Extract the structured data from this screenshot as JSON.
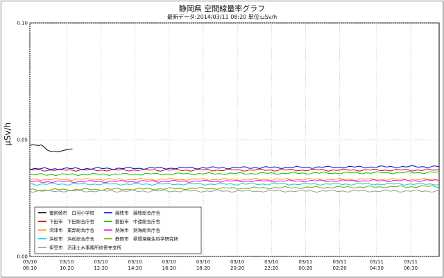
{
  "title": "静岡県 空間線量率グラフ",
  "subtitle": "最新データ:2014/03/11 08:20 単位:μSv/h",
  "chart_data": {
    "type": "line",
    "title": "静岡県 空間線量率グラフ",
    "subtitle": "最新データ:2014/03/11 08:20 単位:μSv/h",
    "ylabel": "μSv/h",
    "xlabel": "",
    "ylim": [
      0,
      0.1
    ],
    "yticks": [
      "0.00",
      "0.05",
      "0.10"
    ],
    "xlim": [
      0,
      1440
    ],
    "x_unit": "minutes after 03/10 08:10",
    "xticks": [
      {
        "x": 0,
        "date": "03/10",
        "time": "08:10"
      },
      {
        "x": 130,
        "date": "03/10",
        "time": "10:20"
      },
      {
        "x": 250,
        "date": "03/10",
        "time": "12:20"
      },
      {
        "x": 370,
        "date": "03/10",
        "time": "14:20"
      },
      {
        "x": 490,
        "date": "03/10",
        "time": "16:20"
      },
      {
        "x": 610,
        "date": "03/10",
        "time": "18:20"
      },
      {
        "x": 730,
        "date": "03/10",
        "time": "20:20"
      },
      {
        "x": 850,
        "date": "03/10",
        "time": "22:20"
      },
      {
        "x": 970,
        "date": "03/11",
        "time": "00:20"
      },
      {
        "x": 1090,
        "date": "03/11",
        "time": "02:20"
      },
      {
        "x": 1220,
        "date": "03/11",
        "time": "04:30"
      },
      {
        "x": 1340,
        "date": "03/11",
        "time": "06:30"
      }
    ],
    "grid": true,
    "legend_position": "bottom-left",
    "series": [
      {
        "name": "御前崎市　白羽小学校",
        "color": "#000000",
        "x": [
          0,
          20,
          40,
          60,
          80,
          100,
          120,
          140,
          150
        ],
        "values": [
          0.0475,
          0.0475,
          0.0475,
          0.046,
          0.045,
          0.045,
          0.045,
          0.046,
          0.046
        ]
      },
      {
        "name": "下田市　下田総合庁舎",
        "color": "#e00000",
        "x": [
          0,
          1440
        ],
        "values": [
          0.037,
          0.037
        ]
      },
      {
        "name": "沼津市　東部総合庁舎",
        "color": "#ff9900",
        "x": [
          0,
          1440
        ],
        "values": [
          0.033,
          0.033
        ]
      },
      {
        "name": "浜松市　浜松総合庁舎",
        "color": "#00d0d0",
        "x": [
          0,
          1440
        ],
        "values": [
          0.031,
          0.031
        ]
      },
      {
        "name": "伊豆市　沼津土木事務所修善寺支所",
        "color": "#9a9a9a",
        "x": [
          0,
          1440
        ],
        "values": [
          0.028,
          0.028
        ]
      },
      {
        "name": "藤枝市　藤枝総合庁舎",
        "color": "#0000dd",
        "x": [
          0,
          1440
        ],
        "values": [
          0.0375,
          0.0385
        ]
      },
      {
        "name": "磐田市　中遠総合庁舎",
        "color": "#00c000",
        "x": [
          0,
          1440
        ],
        "values": [
          0.035,
          0.036
        ]
      },
      {
        "name": "熱海市　熱海総合庁舎",
        "color": "#ff00ff",
        "x": [
          0,
          1440
        ],
        "values": [
          0.032,
          0.0325
        ]
      },
      {
        "name": "静岡市　県環境衛生科学研究所",
        "color": "#66aa00",
        "x": [
          0,
          1440
        ],
        "values": [
          0.0285,
          0.03
        ]
      }
    ]
  }
}
